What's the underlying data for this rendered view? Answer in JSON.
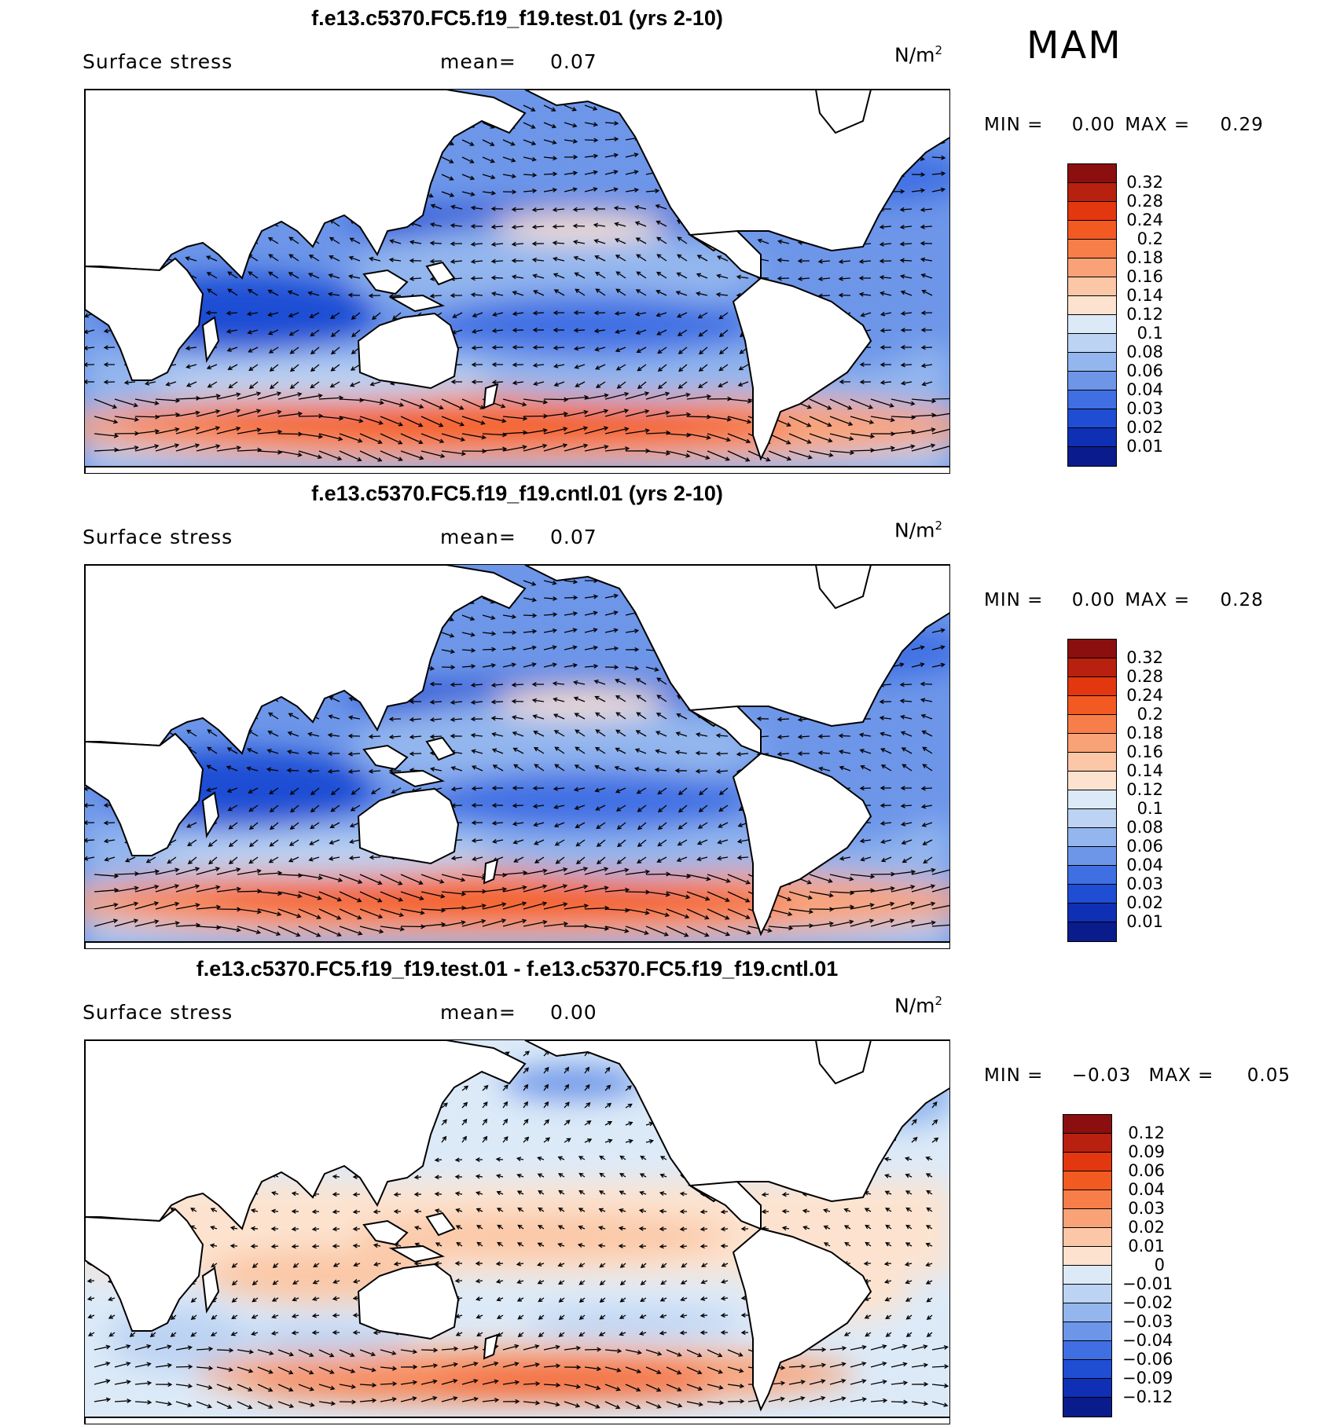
{
  "season": "MAM",
  "panels": [
    {
      "title": "f.e13.c5370.FC5.f19_f19.test.01 (yrs 2-10)",
      "variable": "Surface stress",
      "mean_label": "mean=",
      "mean_value": "0.07",
      "units": "N/m",
      "units_exp": "2",
      "min_label": "MIN =",
      "min_value": "0.00",
      "max_label": "MAX =",
      "max_value": "0.29",
      "colorbar_labels": [
        "0.32",
        "0.28",
        "0.24",
        "0.2",
        "0.18",
        "0.16",
        "0.14",
        "0.12",
        "0.1",
        "0.08",
        "0.06",
        "0.04",
        "0.03",
        "0.02",
        "0.01"
      ],
      "colorbar_colors": [
        "#8b0f0f",
        "#b8200f",
        "#e2370f",
        "#f35a22",
        "#f77e48",
        "#f9a277",
        "#fbc7a6",
        "#fde3cf",
        "#dceaf8",
        "#bcd3f3",
        "#93b6ee",
        "#6d96e9",
        "#3f6fe3",
        "#1f4ed4",
        "#0f30b5",
        "#0a1c8c"
      ],
      "field": "abs"
    },
    {
      "title": "f.e13.c5370.FC5.f19_f19.cntl.01 (yrs 2-10)",
      "variable": "Surface stress",
      "mean_label": "mean=",
      "mean_value": "0.07",
      "units": "N/m",
      "units_exp": "2",
      "min_label": "MIN =",
      "min_value": "0.00",
      "max_label": "MAX =",
      "max_value": "0.28",
      "colorbar_labels": [
        "0.32",
        "0.28",
        "0.24",
        "0.2",
        "0.18",
        "0.16",
        "0.14",
        "0.12",
        "0.1",
        "0.08",
        "0.06",
        "0.04",
        "0.03",
        "0.02",
        "0.01"
      ],
      "colorbar_colors": [
        "#8b0f0f",
        "#b8200f",
        "#e2370f",
        "#f35a22",
        "#f77e48",
        "#f9a277",
        "#fbc7a6",
        "#fde3cf",
        "#dceaf8",
        "#bcd3f3",
        "#93b6ee",
        "#6d96e9",
        "#3f6fe3",
        "#1f4ed4",
        "#0f30b5",
        "#0a1c8c"
      ],
      "field": "abs"
    },
    {
      "title": "f.e13.c5370.FC5.f19_f19.test.01 - f.e13.c5370.FC5.f19_f19.cntl.01",
      "variable": "Surface stress",
      "mean_label": "mean=",
      "mean_value": "0.00",
      "units": "N/m",
      "units_exp": "2",
      "min_label": "MIN =",
      "min_value": "−0.03",
      "max_label": "MAX =",
      "max_value": "0.05",
      "colorbar_labels": [
        "0.12",
        "0.09",
        "0.06",
        "0.04",
        "0.03",
        "0.02",
        "0.01",
        "0",
        "−0.01",
        "−0.02",
        "−0.03",
        "−0.04",
        "−0.06",
        "−0.09",
        "−0.12"
      ],
      "colorbar_colors": [
        "#8b0f0f",
        "#b8200f",
        "#e2370f",
        "#f35a22",
        "#f77e48",
        "#f9a277",
        "#fbc7a6",
        "#fde3cf",
        "#dceaf8",
        "#bcd3f3",
        "#93b6ee",
        "#6d96e9",
        "#3f6fe3",
        "#1f4ed4",
        "#0f30b5",
        "#0a1c8c"
      ],
      "field": "diff"
    }
  ]
}
